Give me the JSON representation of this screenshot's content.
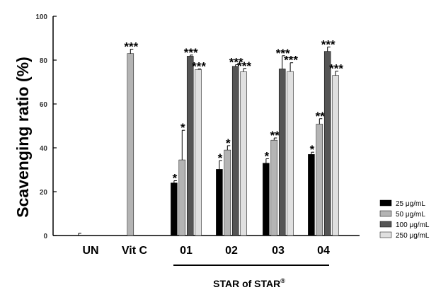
{
  "chart_data": {
    "type": "bar",
    "ylabel": "Scavenging ratio (%)",
    "ylim": [
      0,
      100
    ],
    "yticks": [
      "0",
      "20",
      "40",
      "60",
      "80",
      "100"
    ],
    "categories": [
      "UN",
      "Vit C",
      "01",
      "02",
      "03",
      "04"
    ],
    "group_label": "STAR of STAR",
    "group_label_mark": "®",
    "group_label_spans": [
      "01",
      "02",
      "03",
      "04"
    ],
    "legend_position": "right",
    "colors": {
      "25": "#000000",
      "50": "#b4b4b4",
      "100": "#555555",
      "250": "#e0e0e0"
    },
    "series": [
      {
        "name": "25 μg/mL",
        "values": [
          0,
          null,
          24.0,
          30.2,
          33.0,
          37.0
        ],
        "errors": [
          1.0,
          null,
          1.0,
          4.0,
          2.0,
          1.0
        ],
        "sig": [
          "",
          "",
          "*",
          "*",
          "*",
          "*"
        ]
      },
      {
        "name": "50 μg/mL",
        "values": [
          null,
          83.0,
          34.5,
          39.0,
          43.5,
          50.8
        ],
        "errors": [
          null,
          2.0,
          13.5,
          2.0,
          1.0,
          2.5
        ],
        "sig": [
          "",
          "***",
          "*",
          "*",
          "**",
          "**"
        ]
      },
      {
        "name": "100 μg/mL",
        "values": [
          null,
          null,
          81.8,
          77.2,
          76.0,
          84.0
        ],
        "errors": [
          null,
          null,
          0.5,
          0.7,
          6.0,
          2.0
        ],
        "sig": [
          "",
          "",
          "***",
          "***",
          "***",
          "***"
        ]
      },
      {
        "name": "250 μg/mL",
        "values": [
          null,
          null,
          75.7,
          74.7,
          74.8,
          73.0
        ],
        "errors": [
          null,
          null,
          0.3,
          1.5,
          4.0,
          2.0
        ],
        "sig": [
          "",
          "",
          "***",
          "***",
          "***",
          "***"
        ]
      }
    ]
  }
}
